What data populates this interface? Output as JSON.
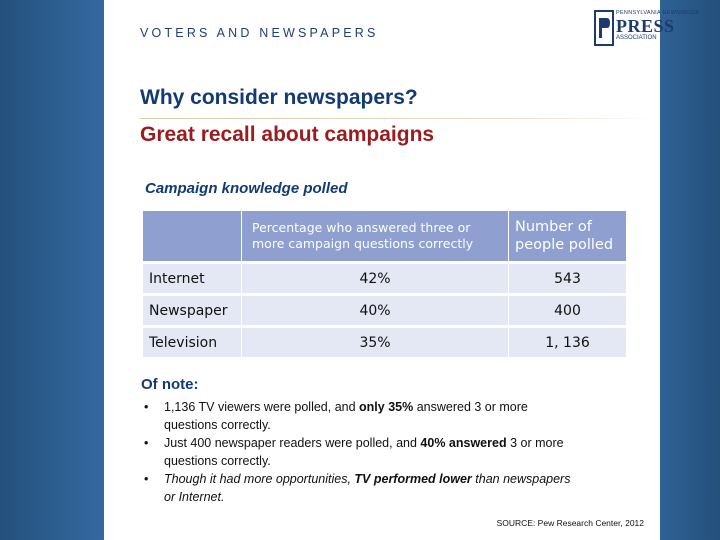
{
  "header": {
    "label": "VOTERS AND NEWSPAPERS",
    "logo": {
      "top_text": "PENNSYLVANIA NEWSMEDIA",
      "press": "PRESS",
      "assoc": "ASSOCIATION"
    }
  },
  "title": "Why consider newspapers?",
  "subtitle": "Great recall about campaigns",
  "table": {
    "caption": "Campaign knowledge polled",
    "headers": [
      "",
      "Percentage who answered three or more campaign questions correctly",
      "Number of people polled"
    ],
    "rows": [
      {
        "label": "Internet",
        "percent": "42%",
        "count": "543"
      },
      {
        "label": "Newspaper",
        "percent": "40%",
        "count": "400"
      },
      {
        "label": "Television",
        "percent": "35%",
        "count": "1, 136"
      }
    ]
  },
  "notes": {
    "heading": "Of note:",
    "items": [
      {
        "a": "1,136 TV viewers were polled, and ",
        "b": "only 35%",
        "c": " answered 3 or more questions correctly."
      },
      {
        "a": "Just 400 newspaper readers were polled, and ",
        "b": "40% answered",
        "c": " 3 or more questions correctly."
      },
      {
        "a": "Though it had more opportunities, ",
        "b": "TV performed lower",
        "c": " than newspapers or Internet."
      }
    ]
  },
  "source": "SOURCE: Pew Research Center, 2012",
  "colors": {
    "navy": "#123a73",
    "red": "#9b1c1f",
    "table_header": "#8e9fd0",
    "table_row": "#e4e8f4",
    "background": "#2a5783"
  }
}
